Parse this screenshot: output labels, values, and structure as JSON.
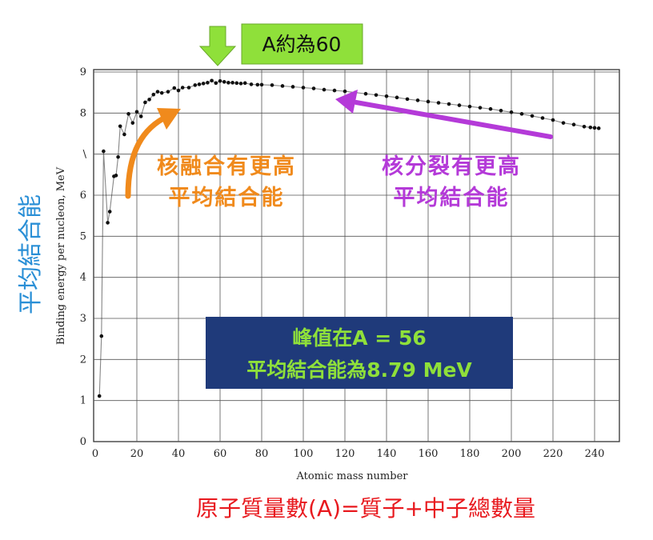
{
  "chart_data": {
    "type": "scatter",
    "title": "",
    "xlabel": "Atomic mass number",
    "ylabel": "Binding energy per nucleon, MeV",
    "xlim": [
      0,
      250
    ],
    "ylim": [
      0,
      9
    ],
    "xticks": [
      "0",
      "20",
      "40",
      "60",
      "80",
      "100",
      "120",
      "140",
      "160",
      "180",
      "200",
      "220",
      "240"
    ],
    "yticks": [
      "0",
      "1",
      "2",
      "3",
      "4",
      "5",
      "6",
      "7",
      "8",
      "9"
    ],
    "ytick_7_label": "\\",
    "grid": true,
    "series": [
      {
        "x": [
          2,
          3,
          4,
          6,
          7,
          9,
          10,
          11,
          12,
          14,
          16,
          18,
          20,
          22,
          24,
          26,
          28,
          30,
          32,
          35,
          38,
          40,
          42,
          45,
          48,
          50,
          52,
          54,
          56,
          58,
          60,
          62,
          64,
          66,
          68,
          70,
          72,
          75,
          78,
          80,
          85,
          90,
          95,
          100,
          105,
          110,
          115,
          120,
          125,
          130,
          135,
          140,
          145,
          150,
          155,
          160,
          165,
          170,
          175,
          180,
          185,
          190,
          195,
          200,
          205,
          210,
          215,
          220,
          225,
          230,
          235,
          238,
          240,
          242
        ],
        "y": [
          1.11,
          2.57,
          7.07,
          5.33,
          5.6,
          6.46,
          6.48,
          6.93,
          7.68,
          7.48,
          7.98,
          7.76,
          8.03,
          7.92,
          8.26,
          8.33,
          8.45,
          8.52,
          8.49,
          8.52,
          8.61,
          8.55,
          8.62,
          8.62,
          8.68,
          8.7,
          8.72,
          8.74,
          8.79,
          8.73,
          8.78,
          8.76,
          8.74,
          8.74,
          8.73,
          8.72,
          8.73,
          8.7,
          8.69,
          8.69,
          8.68,
          8.66,
          8.64,
          8.62,
          8.6,
          8.57,
          8.55,
          8.53,
          8.5,
          8.47,
          8.44,
          8.41,
          8.38,
          8.34,
          8.31,
          8.28,
          8.25,
          8.22,
          8.19,
          8.16,
          8.13,
          8.1,
          8.06,
          8.02,
          7.98,
          7.93,
          7.88,
          7.83,
          7.76,
          7.72,
          7.67,
          7.65,
          7.64,
          7.63
        ]
      }
    ]
  },
  "annotations": {
    "top_callout": "A約為60",
    "fusion_line1": "核融合有更高",
    "fusion_line2": "平均結合能",
    "fission_line1": "核分裂有更高",
    "fission_line2": "平均結合能",
    "peak_line1": "峰值在A = 56",
    "peak_line2": "平均結合能為8.79 MeV",
    "side_label": "平均結合能",
    "bottom_label": "原子質量數(A)=質子+中子總數量"
  },
  "colors": {
    "fusion": "#f08a1c",
    "fission": "#b43ad8",
    "side_label": "#2a8fd6",
    "bottom_label": "#e8191e",
    "peak_box": "#1f3a7a",
    "peak_text": "#8fe03a",
    "callout_box": "#8fe03a",
    "down_arrow": "#8fe03a"
  }
}
